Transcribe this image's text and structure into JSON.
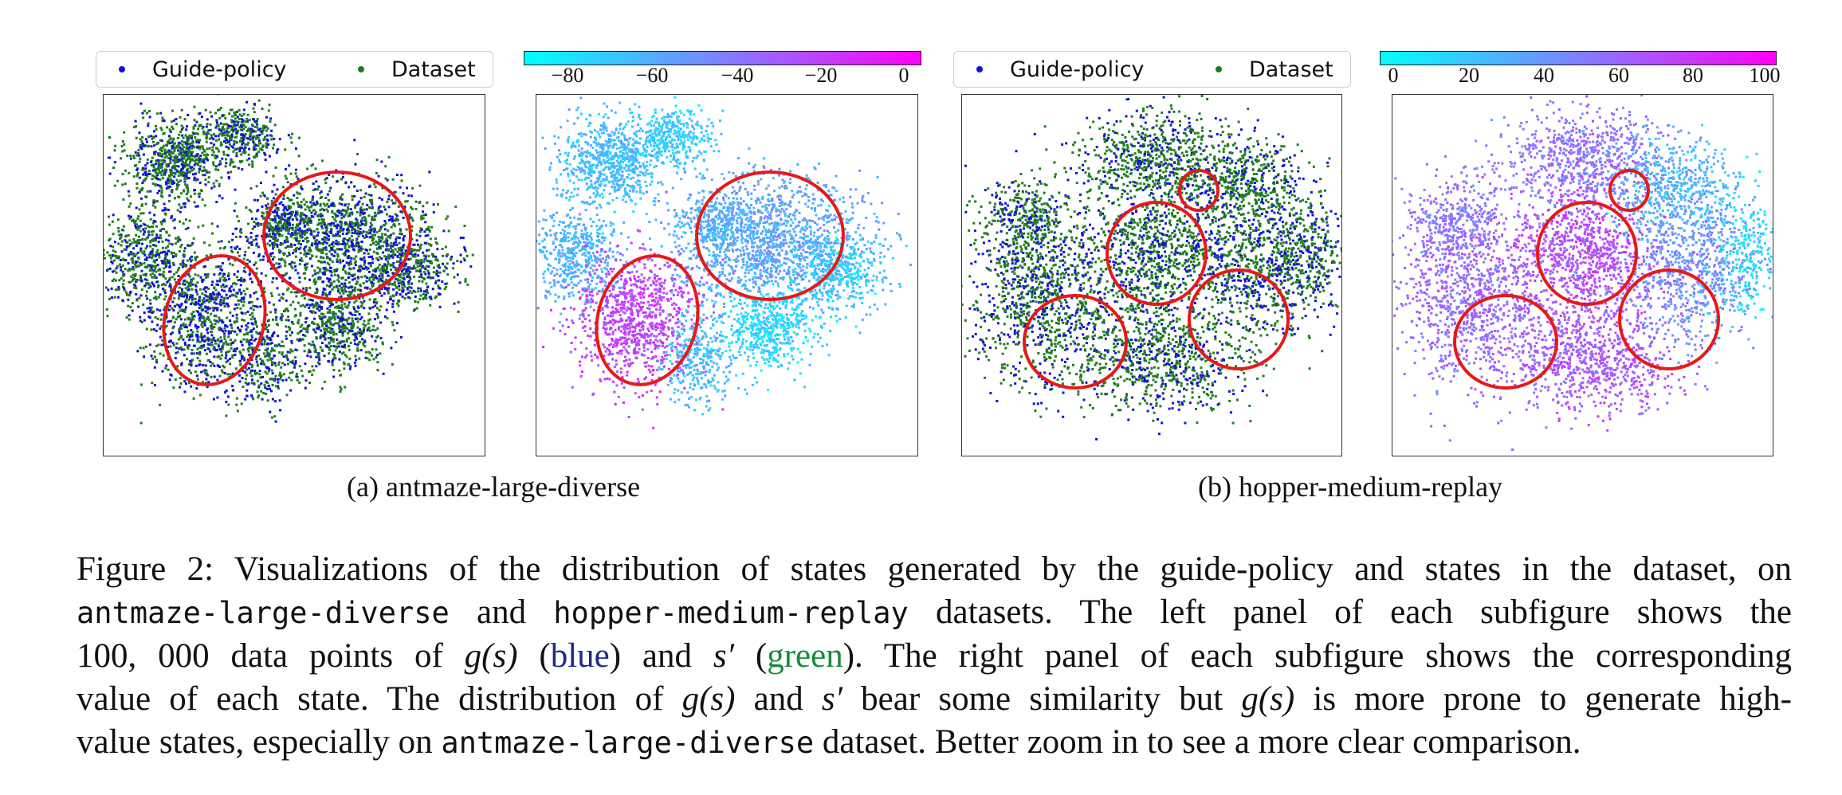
{
  "legend_a": {
    "guide_label": "Guide-policy",
    "dataset_label": "Dataset"
  },
  "legend_b": {
    "guide_label": "Guide-policy",
    "dataset_label": "Dataset"
  },
  "colorbar_a": {
    "ticks": [
      "−80",
      "−60",
      "−40",
      "−20",
      "0"
    ]
  },
  "colorbar_b": {
    "ticks": [
      "0",
      "20",
      "40",
      "60",
      "80",
      "100"
    ]
  },
  "subcaption_a": {
    "tag": "(a)",
    "name": "antmaze-large-diverse"
  },
  "subcaption_b": {
    "tag": "(b)",
    "name": "hopper-medium-replay"
  },
  "caption": {
    "l1": "Figure 2: Visualizations of the distribution of states generated by the guide-policy and states in the dataset, on",
    "l2_ds1": "antmaze-large-diverse",
    "l2_and": " and ",
    "l2_ds2": "hopper-medium-replay",
    "l2_rest": " datasets. The left panel of each subfigure shows the",
    "l3_a": "100, 000 data points of ",
    "l3_gs": "g(s)",
    "l3_b": " (",
    "l3_blue": "blue",
    "l3_c": ") and ",
    "l3_sp": "s′",
    "l3_d": " (",
    "l3_green": "green",
    "l3_e": "). The right panel of each subfigure shows the corresponding",
    "l4_a": "value of each state. The distribution of ",
    "l4_gs": "g(s)",
    "l4_b": " and ",
    "l4_sp": "s′",
    "l4_c": " bear some similarity but ",
    "l4_gs2": "g(s)",
    "l4_d": " is more prone to generate high-",
    "l5_a": "value states, especially on ",
    "l5_ds1": "antmaze-large-diverse",
    "l5_b": " dataset. Better zoom in to see a more clear comparison."
  },
  "colors": {
    "guide": "#1010d0",
    "dataset": "#1e7a1e",
    "circle": "#e81818",
    "cmap_low": "#00ffff",
    "cmap_high": "#ff00ff"
  }
}
